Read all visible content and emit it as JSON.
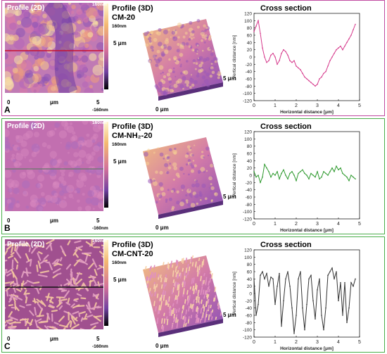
{
  "panels": [
    {
      "letter": "A",
      "border_color": "#c04aa0",
      "line_color": "#d63a8c",
      "texture": "domains",
      "title_2d": "Profile (2D)",
      "title_3d": "Profile (3D)",
      "sample": "CM-20",
      "scale_top": "160nm",
      "scale_bottom": "-160nm",
      "axis_start": "0",
      "axis_unit": "μm",
      "axis_end": "5",
      "label_3d_z": "160nm",
      "label_3d_y": "5 μm",
      "label_3d_x": "5 μm",
      "label_3d_origin": "0 μm",
      "cs_title": "Cross section",
      "chart_data": {
        "type": "line",
        "title": "Cross section",
        "xlabel": "Horizontal distance [μm]",
        "ylabel": "Vertical distance [nm]",
        "xlim": [
          0,
          5
        ],
        "ylim": [
          -120,
          120
        ],
        "xticks": [
          "0",
          "1",
          "2",
          "3",
          "4",
          "5"
        ],
        "yticks": [
          "120",
          "100",
          "80",
          "60",
          "40",
          "20",
          "0",
          "-20",
          "-40",
          "-60",
          "-80",
          "-100",
          "-120"
        ],
        "series": [
          {
            "x": [
              0,
              0.1,
              0.2,
              0.3,
              0.4,
              0.5,
              0.6,
              0.7,
              0.8,
              0.9,
              1.0,
              1.1,
              1.2,
              1.3,
              1.4,
              1.5,
              1.6,
              1.7,
              1.8,
              1.9,
              2.0,
              2.1,
              2.2,
              2.3,
              2.4,
              2.5,
              2.6,
              2.7,
              2.8,
              2.9,
              3.0,
              3.1,
              3.2,
              3.3,
              3.4,
              3.5,
              3.6,
              3.7,
              3.8,
              3.9,
              4.0,
              4.1,
              4.2,
              4.3,
              4.4,
              4.5,
              4.6,
              4.7,
              4.8
            ],
            "y": [
              70,
              85,
              100,
              65,
              25,
              0,
              -15,
              -10,
              5,
              10,
              0,
              -20,
              -10,
              10,
              20,
              15,
              5,
              -10,
              -15,
              -10,
              -25,
              -30,
              -35,
              -45,
              -55,
              -60,
              -65,
              -70,
              -75,
              -80,
              -75,
              -60,
              -55,
              -45,
              -40,
              -25,
              -10,
              0,
              10,
              20,
              25,
              30,
              20,
              30,
              40,
              50,
              60,
              75,
              90
            ]
          }
        ]
      }
    },
    {
      "letter": "B",
      "border_color": "#4aae4a",
      "line_color": "#2f9a2f",
      "texture": "flat",
      "title_2d": "Profile (2D)",
      "title_3d": "Profile (3D)",
      "sample": "CM-NH₂-20",
      "scale_top": "160nm",
      "scale_bottom": "-160nm",
      "axis_start": "0",
      "axis_unit": "μm",
      "axis_end": "5",
      "label_3d_z": "160nm",
      "label_3d_y": "5 μm",
      "label_3d_x": "5 μm",
      "label_3d_origin": "0 μm",
      "cs_title": "Cross section",
      "chart_data": {
        "type": "line",
        "title": "Cross section",
        "xlabel": "Horizontal distance [μm]",
        "ylabel": "Vertical distance [nm]",
        "xlim": [
          0,
          5
        ],
        "ylim": [
          -120,
          120
        ],
        "xticks": [
          "0",
          "1",
          "2",
          "3",
          "4",
          "5"
        ],
        "yticks": [
          "120",
          "100",
          "80",
          "60",
          "40",
          "20",
          "0",
          "-20",
          "-40",
          "-60",
          "-80",
          "-100",
          "-120"
        ],
        "series": [
          {
            "x": [
              0,
              0.1,
              0.2,
              0.3,
              0.4,
              0.5,
              0.6,
              0.7,
              0.8,
              0.9,
              1.0,
              1.1,
              1.2,
              1.3,
              1.4,
              1.5,
              1.6,
              1.7,
              1.8,
              1.9,
              2.0,
              2.1,
              2.2,
              2.3,
              2.4,
              2.5,
              2.6,
              2.7,
              2.8,
              2.9,
              3.0,
              3.1,
              3.2,
              3.3,
              3.4,
              3.5,
              3.6,
              3.7,
              3.8,
              3.9,
              4.0,
              4.1,
              4.2,
              4.3,
              4.4,
              4.5,
              4.6,
              4.7,
              4.8
            ],
            "y": [
              10,
              -5,
              0,
              -20,
              -5,
              30,
              20,
              10,
              -5,
              5,
              0,
              10,
              -10,
              5,
              15,
              0,
              -10,
              5,
              10,
              0,
              -15,
              5,
              10,
              15,
              5,
              0,
              -10,
              5,
              0,
              -5,
              10,
              -10,
              -5,
              10,
              5,
              0,
              10,
              20,
              10,
              25,
              15,
              20,
              5,
              0,
              -5,
              -15,
              0,
              -5,
              -10
            ]
          }
        ]
      }
    },
    {
      "letter": "C",
      "border_color": "#4aae4a",
      "line_color": "#333333",
      "texture": "worms",
      "title_2d": "Profile (2D)",
      "title_3d": "Profile (3D)",
      "sample": "CM-CNT-20",
      "scale_top": "160nm",
      "scale_bottom": "-160nm",
      "axis_start": "0",
      "axis_unit": "μm",
      "axis_end": "5",
      "label_3d_z": "160nm",
      "label_3d_y": "5 μm",
      "label_3d_x": "5 μm",
      "label_3d_origin": "0 μm",
      "cs_title": "Cross section",
      "chart_data": {
        "type": "line",
        "title": "Cross section",
        "xlabel": "Horizontal distance [μm]",
        "ylabel": "Vertical distance [nm]",
        "xlim": [
          0,
          5
        ],
        "ylim": [
          -120,
          120
        ],
        "xticks": [
          "0",
          "1",
          "2",
          "3",
          "4",
          "5"
        ],
        "yticks": [
          "120",
          "100",
          "80",
          "60",
          "40",
          "20",
          "0",
          "-20",
          "-40",
          "-60",
          "-80",
          "-100",
          "-120"
        ],
        "series": [
          {
            "x": [
              0,
              0.1,
              0.2,
              0.3,
              0.4,
              0.5,
              0.6,
              0.7,
              0.8,
              0.9,
              1.0,
              1.1,
              1.2,
              1.3,
              1.4,
              1.5,
              1.6,
              1.7,
              1.8,
              1.9,
              2.0,
              2.1,
              2.2,
              2.3,
              2.4,
              2.5,
              2.6,
              2.7,
              2.8,
              2.9,
              3.0,
              3.1,
              3.2,
              3.3,
              3.4,
              3.5,
              3.6,
              3.7,
              3.8,
              3.9,
              4.0,
              4.1,
              4.2,
              4.3,
              4.4,
              4.5,
              4.6,
              4.7,
              4.8
            ],
            "y": [
              40,
              -60,
              -30,
              50,
              60,
              40,
              55,
              20,
              45,
              40,
              -30,
              20,
              55,
              -90,
              -20,
              40,
              60,
              20,
              -40,
              -110,
              -60,
              40,
              60,
              -40,
              -100,
              -30,
              40,
              50,
              -20,
              -70,
              10,
              40,
              -60,
              -100,
              -40,
              50,
              60,
              70,
              40,
              60,
              -20,
              30,
              -60,
              30,
              -80,
              -40,
              30,
              20,
              40
            ]
          }
        ]
      }
    }
  ]
}
